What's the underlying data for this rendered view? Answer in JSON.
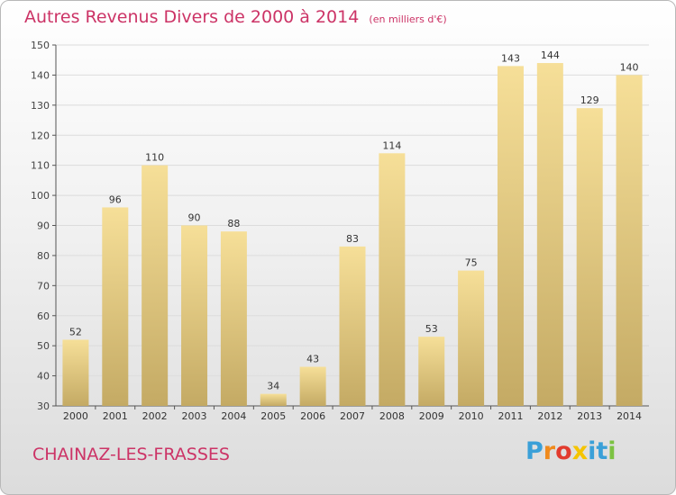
{
  "title": "Autres Revenus Divers de 2000 à 2014",
  "unit_note": "(en milliers d'€)",
  "place_name": "CHAINAZ-LES-FRASSES",
  "logo": {
    "letters": [
      "P",
      "r",
      "o",
      "x",
      "i",
      "t",
      "i"
    ],
    "colors": [
      "#3aa0d8",
      "#f08a1c",
      "#e23b2e",
      "#f5c400",
      "#3aa0d8",
      "#3aa0d8",
      "#7cc242"
    ]
  },
  "chart_data": {
    "type": "bar",
    "categories": [
      "2000",
      "2001",
      "2002",
      "2003",
      "2004",
      "2005",
      "2006",
      "2007",
      "2008",
      "2009",
      "2010",
      "2011",
      "2012",
      "2013",
      "2014"
    ],
    "values": [
      52,
      96,
      110,
      90,
      88,
      34,
      43,
      83,
      114,
      53,
      75,
      143,
      144,
      129,
      140
    ],
    "data_labels": [
      "52",
      "96",
      "110",
      "90",
      "88",
      "34",
      "43",
      "83",
      "114",
      "53",
      "75",
      "143",
      "144",
      "129",
      "140"
    ],
    "ylim": [
      30,
      150
    ],
    "yticks": [
      "30",
      "40",
      "50",
      "60",
      "70",
      "80",
      "90",
      "100",
      "110",
      "120",
      "130",
      "140",
      "150"
    ],
    "grid": "horizontal",
    "colors": {
      "bar_light": "#f6df98",
      "bar_dark": "#c4aa64",
      "grid": "#dcdcdc"
    }
  }
}
